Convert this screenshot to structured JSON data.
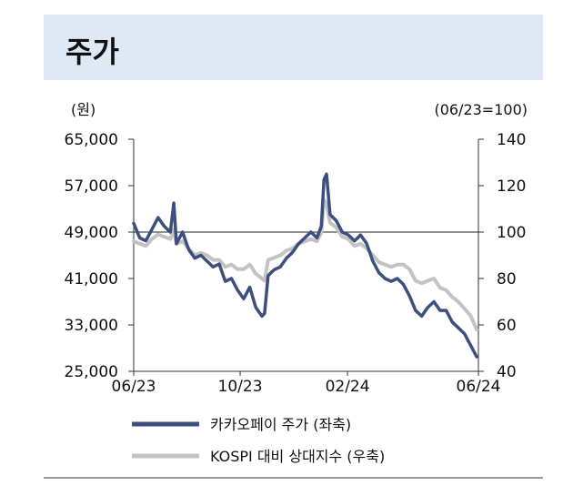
{
  "title": "주가",
  "chart_data": {
    "type": "line",
    "left_unit": "(원)",
    "right_unit": "(06/23=100)",
    "y_left_ticks": [
      "65,000",
      "57,000",
      "49,000",
      "41,000",
      "33,000",
      "25,000"
    ],
    "y_left_lim": [
      25000,
      65000
    ],
    "y_right_ticks": [
      "140",
      "120",
      "100",
      "80",
      "60",
      "40"
    ],
    "y_right_lim": [
      40,
      140
    ],
    "x_ticks": [
      "06/23",
      "10/23",
      "02/24",
      "06/24"
    ],
    "reference_line": {
      "axis": "right",
      "value": 100
    },
    "legend": [
      "카카오페이 주가 (좌축)",
      "KOSPI 대비 상대지수 (우축)"
    ],
    "colors": {
      "primary": "#3e4f7f",
      "secondary": "#c3c3c3",
      "title_band": "#dfe9f6"
    },
    "series": [
      {
        "name": "카카오페이 주가 (좌축)",
        "axis": "left",
        "x": [
          "2023-06-01",
          "2023-06-08",
          "2023-06-15",
          "2023-06-22",
          "2023-06-29",
          "2023-07-06",
          "2023-07-13",
          "2023-07-17",
          "2023-07-20",
          "2023-07-27",
          "2023-08-03",
          "2023-08-10",
          "2023-08-17",
          "2023-08-24",
          "2023-08-31",
          "2023-09-07",
          "2023-09-14",
          "2023-09-21",
          "2023-09-28",
          "2023-10-05",
          "2023-10-12",
          "2023-10-19",
          "2023-10-26",
          "2023-10-29",
          "2023-11-02",
          "2023-11-09",
          "2023-11-16",
          "2023-11-23",
          "2023-11-30",
          "2023-12-07",
          "2023-12-14",
          "2023-12-21",
          "2023-12-28",
          "2024-01-02",
          "2024-01-05",
          "2024-01-08",
          "2024-01-12",
          "2024-01-19",
          "2024-01-26",
          "2024-02-02",
          "2024-02-09",
          "2024-02-16",
          "2024-02-23",
          "2024-03-01",
          "2024-03-08",
          "2024-03-15",
          "2024-03-22",
          "2024-03-29",
          "2024-04-05",
          "2024-04-12",
          "2024-04-19",
          "2024-04-26",
          "2024-05-03",
          "2024-05-10",
          "2024-05-17",
          "2024-05-24",
          "2024-05-31",
          "2024-06-07",
          "2024-06-14",
          "2024-06-21",
          "2024-06-28"
        ],
        "values": [
          50500,
          48000,
          47500,
          49500,
          51500,
          50000,
          49000,
          54000,
          47000,
          49000,
          46000,
          44500,
          45000,
          44000,
          43000,
          43500,
          40500,
          41000,
          39000,
          37500,
          39500,
          36000,
          34500,
          35000,
          41500,
          42500,
          43000,
          44500,
          45500,
          47000,
          48000,
          49000,
          48000,
          50000,
          58000,
          59000,
          52000,
          51000,
          49000,
          48500,
          47500,
          48500,
          47000,
          44000,
          42000,
          41000,
          40500,
          41000,
          40000,
          38000,
          35500,
          34500,
          36000,
          37000,
          35500,
          35500,
          33500,
          32500,
          31500,
          29500,
          27500
        ]
      },
      {
        "name": "KOSPI 대비 상대지수 (우축)",
        "axis": "right",
        "x": [
          "2023-06-01",
          "2023-06-08",
          "2023-06-15",
          "2023-06-22",
          "2023-06-29",
          "2023-07-06",
          "2023-07-13",
          "2023-07-17",
          "2023-07-20",
          "2023-07-27",
          "2023-08-03",
          "2023-08-10",
          "2023-08-17",
          "2023-08-24",
          "2023-08-31",
          "2023-09-07",
          "2023-09-14",
          "2023-09-21",
          "2023-09-28",
          "2023-10-05",
          "2023-10-12",
          "2023-10-19",
          "2023-10-26",
          "2023-10-29",
          "2023-11-02",
          "2023-11-09",
          "2023-11-16",
          "2023-11-23",
          "2023-11-30",
          "2023-12-07",
          "2023-12-14",
          "2023-12-21",
          "2023-12-28",
          "2024-01-02",
          "2024-01-05",
          "2024-01-08",
          "2024-01-12",
          "2024-01-19",
          "2024-01-26",
          "2024-02-02",
          "2024-02-09",
          "2024-02-16",
          "2024-02-23",
          "2024-03-01",
          "2024-03-08",
          "2024-03-15",
          "2024-03-22",
          "2024-03-29",
          "2024-04-05",
          "2024-04-12",
          "2024-04-19",
          "2024-04-26",
          "2024-05-03",
          "2024-05-10",
          "2024-05-17",
          "2024-05-24",
          "2024-05-31",
          "2024-06-07",
          "2024-06-14",
          "2024-06-21",
          "2024-06-28"
        ],
        "values": [
          96,
          95,
          94,
          97,
          99,
          98,
          97,
          101,
          95,
          96,
          93,
          90,
          91,
          90,
          88,
          88,
          85,
          86,
          84,
          84,
          86,
          82,
          80,
          79,
          88,
          89,
          90,
          92,
          93,
          95,
          96,
          97,
          96,
          100,
          114,
          112,
          104,
          102,
          98,
          97,
          94,
          95,
          93,
          90,
          87,
          86,
          85,
          86,
          86,
          84,
          79,
          78,
          79,
          80,
          76,
          75,
          72,
          70,
          67,
          64,
          58
        ]
      }
    ]
  }
}
